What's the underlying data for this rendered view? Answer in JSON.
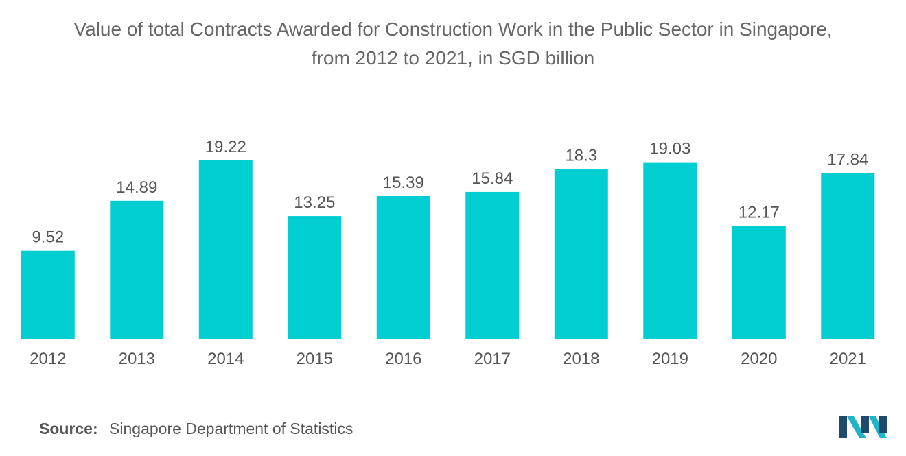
{
  "title_line1": "Value of total Contracts Awarded for Construction Work in the Public Sector in Singapore,",
  "title_line2": "from 2012 to 2021, in SGD billion",
  "source_label": "Source:",
  "source_text": "Singapore Department of Statistics",
  "colors": {
    "bar": "#00CED1",
    "text": "#555555",
    "logo_dark": "#1E4A6E",
    "logo_light": "#1FB5C7"
  },
  "chart_data": {
    "type": "bar",
    "title": "Value of total Contracts Awarded for Construction Work in the Public Sector in Singapore, from 2012 to 2021, in SGD billion",
    "categories": [
      "2012",
      "2013",
      "2014",
      "2015",
      "2016",
      "2017",
      "2018",
      "2019",
      "2020",
      "2021"
    ],
    "values": [
      9.52,
      14.89,
      19.22,
      13.25,
      15.39,
      15.84,
      18.3,
      19.03,
      12.17,
      17.84
    ],
    "data_labels": [
      "9.52",
      "14.89",
      "19.22",
      "13.25",
      "15.39",
      "15.84",
      "18.3",
      "19.03",
      "12.17",
      "17.84"
    ],
    "xlabel": "",
    "ylabel": "",
    "ylim": [
      0,
      19.22
    ],
    "grid": false,
    "legend": "none"
  }
}
